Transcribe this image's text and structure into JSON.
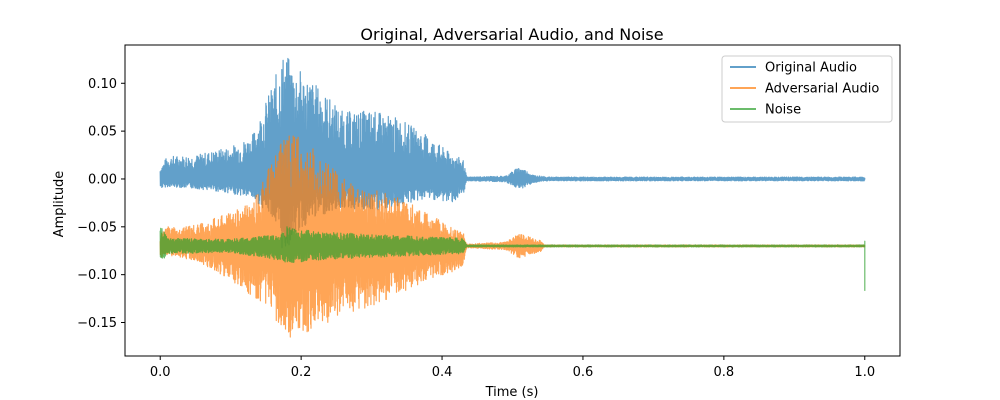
{
  "chart_data": {
    "type": "line",
    "title": "Original, Adversarial Audio, and Noise",
    "xlabel": "Time (s)",
    "ylabel": "Amplitude",
    "xlim": [
      -0.05,
      1.05
    ],
    "ylim": [
      -0.185,
      0.14
    ],
    "xticks": [
      0.0,
      0.2,
      0.4,
      0.6,
      0.8,
      1.0
    ],
    "xtick_labels": [
      "0.0",
      "0.2",
      "0.4",
      "0.6",
      "0.8",
      "1.0"
    ],
    "yticks": [
      -0.15,
      -0.1,
      -0.05,
      0.0,
      0.05,
      0.1
    ],
    "ytick_labels": [
      "−0.15",
      "−0.10",
      "−0.05",
      "0.00",
      "0.05",
      "0.10"
    ],
    "grid": false,
    "legend_position": "top-right",
    "series": [
      {
        "name": "Original Audio",
        "color": "#1f77b4",
        "alpha": 0.7,
        "baseline": 0.0,
        "envelope": [
          {
            "x": 0.0,
            "upper": 0.012,
            "lower": -0.01
          },
          {
            "x": 0.01,
            "upper": 0.024,
            "lower": -0.008
          },
          {
            "x": 0.05,
            "upper": 0.025,
            "lower": -0.01
          },
          {
            "x": 0.1,
            "upper": 0.034,
            "lower": -0.015
          },
          {
            "x": 0.13,
            "upper": 0.045,
            "lower": -0.02
          },
          {
            "x": 0.16,
            "upper": 0.1,
            "lower": -0.04
          },
          {
            "x": 0.175,
            "upper": 0.133,
            "lower": -0.08
          },
          {
            "x": 0.19,
            "upper": 0.12,
            "lower": -0.06
          },
          {
            "x": 0.22,
            "upper": 0.1,
            "lower": -0.04
          },
          {
            "x": 0.26,
            "upper": 0.07,
            "lower": -0.03
          },
          {
            "x": 0.3,
            "upper": 0.072,
            "lower": -0.035
          },
          {
            "x": 0.34,
            "upper": 0.063,
            "lower": -0.028
          },
          {
            "x": 0.38,
            "upper": 0.045,
            "lower": -0.02
          },
          {
            "x": 0.41,
            "upper": 0.028,
            "lower": -0.025
          },
          {
            "x": 0.43,
            "upper": 0.02,
            "lower": -0.02
          },
          {
            "x": 0.435,
            "upper": 0.002,
            "lower": -0.002
          },
          {
            "x": 0.49,
            "upper": 0.003,
            "lower": -0.003
          },
          {
            "x": 0.51,
            "upper": 0.013,
            "lower": -0.011
          },
          {
            "x": 0.53,
            "upper": 0.004,
            "lower": -0.004
          },
          {
            "x": 0.55,
            "upper": 0.002,
            "lower": -0.002
          },
          {
            "x": 1.0,
            "upper": 0.002,
            "lower": -0.002
          }
        ]
      },
      {
        "name": "Adversarial Audio",
        "color": "#ff7f0e",
        "alpha": 0.7,
        "baseline": -0.07,
        "envelope": [
          {
            "x": 0.0,
            "upper": -0.058,
            "lower": -0.082
          },
          {
            "x": 0.01,
            "upper": -0.05,
            "lower": -0.08
          },
          {
            "x": 0.05,
            "upper": -0.048,
            "lower": -0.085
          },
          {
            "x": 0.1,
            "upper": -0.035,
            "lower": -0.105
          },
          {
            "x": 0.13,
            "upper": -0.025,
            "lower": -0.125
          },
          {
            "x": 0.16,
            "upper": 0.02,
            "lower": -0.145
          },
          {
            "x": 0.18,
            "upper": 0.06,
            "lower": -0.172
          },
          {
            "x": 0.2,
            "upper": 0.04,
            "lower": -0.16
          },
          {
            "x": 0.22,
            "upper": 0.03,
            "lower": -0.16
          },
          {
            "x": 0.26,
            "upper": 0.0,
            "lower": -0.14
          },
          {
            "x": 0.3,
            "upper": -0.01,
            "lower": -0.135
          },
          {
            "x": 0.34,
            "upper": -0.02,
            "lower": -0.12
          },
          {
            "x": 0.38,
            "upper": -0.035,
            "lower": -0.105
          },
          {
            "x": 0.41,
            "upper": -0.05,
            "lower": -0.1
          },
          {
            "x": 0.43,
            "upper": -0.055,
            "lower": -0.09
          },
          {
            "x": 0.435,
            "upper": -0.068,
            "lower": -0.072
          },
          {
            "x": 0.49,
            "upper": -0.066,
            "lower": -0.074
          },
          {
            "x": 0.51,
            "upper": -0.057,
            "lower": -0.083
          },
          {
            "x": 0.53,
            "upper": -0.062,
            "lower": -0.078
          },
          {
            "x": 0.54,
            "upper": -0.064,
            "lower": -0.076
          },
          {
            "x": 0.545,
            "upper": -0.069,
            "lower": -0.071
          },
          {
            "x": 1.0,
            "upper": -0.069,
            "lower": -0.071
          }
        ]
      },
      {
        "name": "Noise",
        "color": "#2ca02c",
        "alpha": 0.7,
        "baseline": -0.07,
        "envelope": [
          {
            "x": 0.0,
            "upper": -0.047,
            "lower": -0.09
          },
          {
            "x": 0.01,
            "upper": -0.062,
            "lower": -0.078
          },
          {
            "x": 0.1,
            "upper": -0.063,
            "lower": -0.077
          },
          {
            "x": 0.17,
            "upper": -0.058,
            "lower": -0.085
          },
          {
            "x": 0.18,
            "upper": -0.05,
            "lower": -0.088
          },
          {
            "x": 0.22,
            "upper": -0.055,
            "lower": -0.085
          },
          {
            "x": 0.3,
            "upper": -0.058,
            "lower": -0.082
          },
          {
            "x": 0.43,
            "upper": -0.062,
            "lower": -0.078
          },
          {
            "x": 0.435,
            "upper": -0.069,
            "lower": -0.071
          },
          {
            "x": 1.0,
            "upper": -0.069,
            "lower": -0.071
          }
        ],
        "end_spike": {
          "x": 1.0,
          "top": -0.065,
          "bottom": -0.117
        }
      }
    ]
  }
}
